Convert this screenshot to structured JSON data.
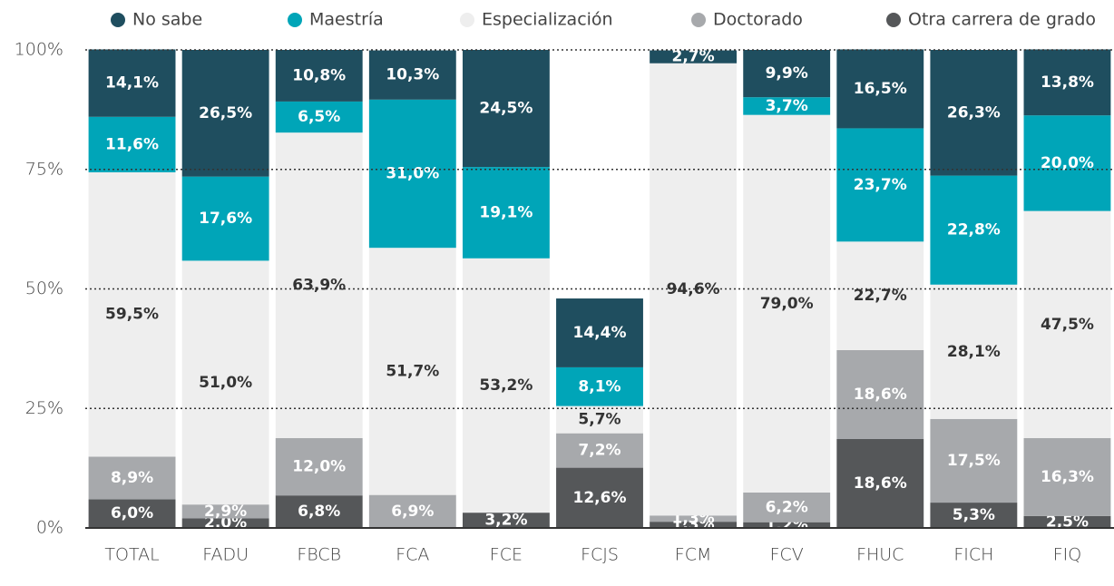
{
  "chart_data": {
    "type": "stacked_bar",
    "categories": [
      "TOTAL",
      "FADU",
      "FBCB",
      "FCA",
      "FCE",
      "FCJS",
      "FCM",
      "FCV",
      "FHUC",
      "FICH",
      "FIQ"
    ],
    "ylim": [
      0,
      100
    ],
    "yticks": [
      {
        "value": 0,
        "label": "0%"
      },
      {
        "value": 25,
        "label": "25%"
      },
      {
        "value": 50,
        "label": "50%"
      },
      {
        "value": 75,
        "label": "75%"
      },
      {
        "value": 100,
        "label": "100%"
      }
    ],
    "grid": true,
    "legend": "top",
    "series": [
      {
        "name": "Otra carrera de grado",
        "color": "#555759",
        "label_color": "#ffffff",
        "values": [
          6.0,
          2.0,
          6.8,
          null,
          3.2,
          12.6,
          1.3,
          1.2,
          18.6,
          5.3,
          2.5
        ],
        "value_labels": [
          "6,0%",
          "2,0%",
          "6,8%",
          null,
          "3,2%",
          "12,6%",
          "1,3%",
          "1,2%",
          "18,6%",
          "5,3%",
          "2,5%"
        ]
      },
      {
        "name": "Doctorado",
        "color": "#a7a9ac",
        "label_color": "#ffffff",
        "values": [
          8.9,
          2.9,
          12.0,
          6.9,
          null,
          7.2,
          1.3,
          6.2,
          18.6,
          17.5,
          16.3
        ],
        "value_labels": [
          "8,9%",
          "2,9%",
          "12,0%",
          "6,9%",
          null,
          "7,2%",
          "1,3%",
          "6,2%",
          "18,6%",
          "17,5%",
          "16,3%"
        ]
      },
      {
        "name": "Especialización",
        "color": "#eeeeee",
        "label_color": "#333333",
        "values": [
          59.5,
          51.0,
          63.9,
          51.7,
          53.2,
          5.7,
          94.6,
          79.0,
          22.7,
          28.1,
          47.5
        ],
        "value_labels": [
          "59,5%",
          "51,0%",
          "63,9%",
          "51,7%",
          "53,2%",
          "5,7%",
          "94,6%",
          "79,0%",
          "22,7%",
          "28,1%",
          "47,5%"
        ]
      },
      {
        "name": "Maestría",
        "color": "#00a5b8",
        "label_color": "#ffffff",
        "values": [
          11.6,
          17.6,
          6.5,
          31.0,
          19.1,
          8.1,
          null,
          3.7,
          23.7,
          22.8,
          20.0
        ],
        "value_labels": [
          "11,6%",
          "17,6%",
          "6,5%",
          "31,0%",
          "19,1%",
          "8,1%",
          null,
          "3,7%",
          "23,7%",
          "22,8%",
          "20,0%"
        ]
      },
      {
        "name": "No sabe",
        "color": "#1f4e5f",
        "label_color": "#ffffff",
        "values": [
          14.1,
          26.5,
          10.8,
          10.3,
          24.5,
          14.4,
          2.7,
          9.9,
          16.5,
          26.3,
          13.8
        ],
        "value_labels": [
          "14,1%",
          "26,5%",
          "10,8%",
          "10,3%",
          "24,5%",
          "14,4%",
          "2,7%",
          "9,9%",
          "16,5%",
          "26,3%",
          "13,8%"
        ]
      }
    ]
  }
}
